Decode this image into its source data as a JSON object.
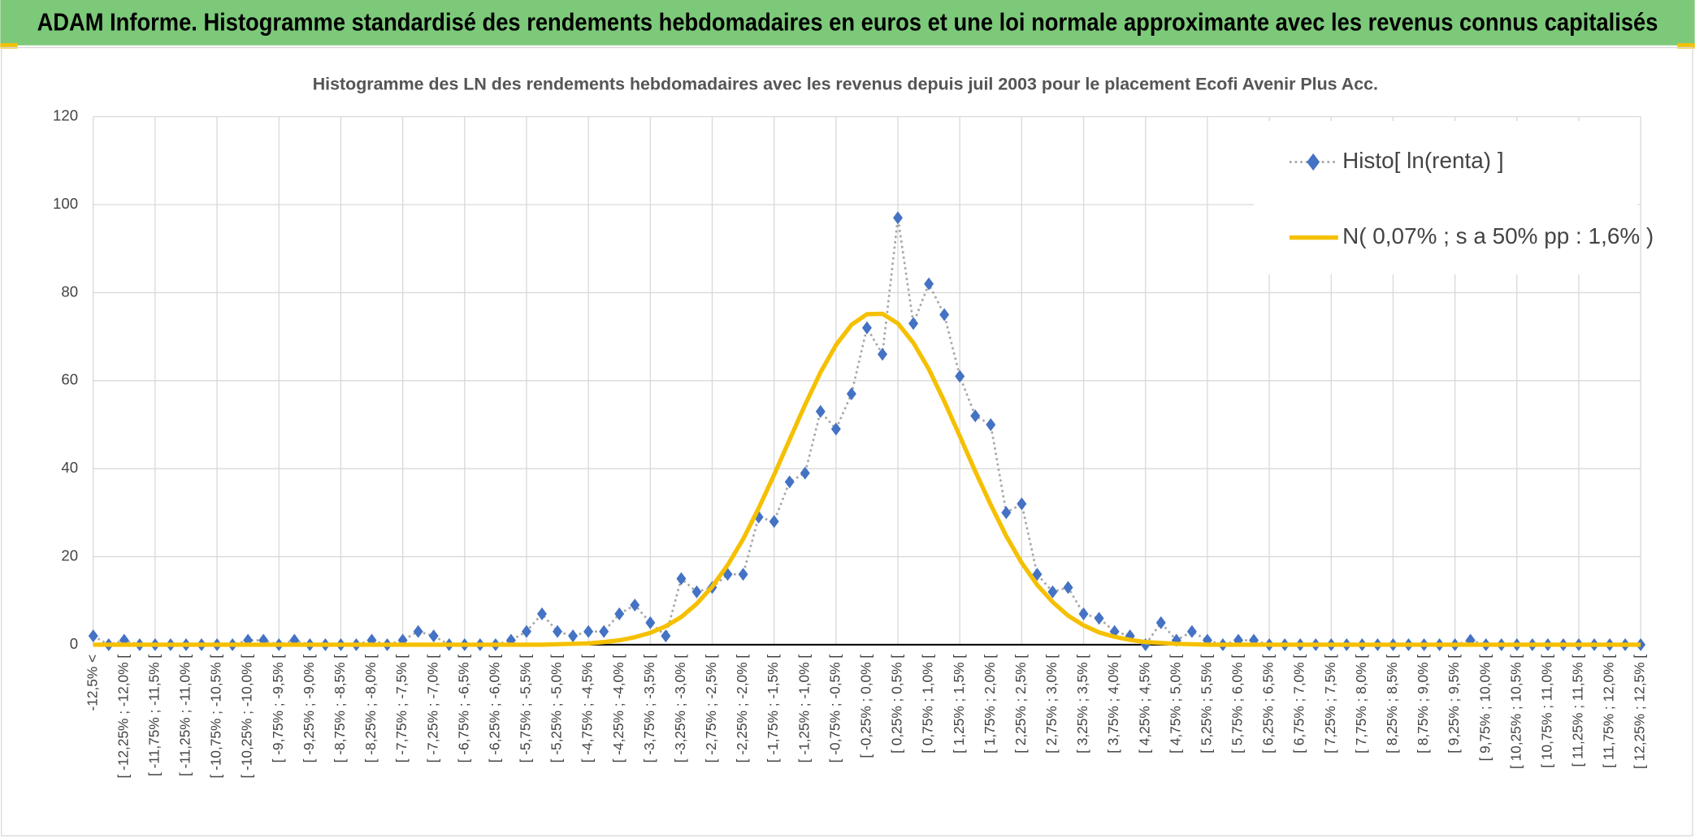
{
  "header": {
    "title": "ADAM Informe. Histogramme standardisé des rendements hebdomadaires en euros et une loi normale approximante avec les revenus connus capitalisés"
  },
  "chart_data": {
    "type": "line",
    "title": "Histogramme des LN des rendements hebdomadaires avec les revenus depuis juil 2003 pour le placement Ecofi Avenir Plus Acc.",
    "categories": [
      "-12,5% <",
      null,
      "[ -12,25% ; -12,0% [",
      null,
      "[ -11,75% ; -11,5% [",
      null,
      "[ -11,25% ; -11,0% [",
      null,
      "[ -10,75% ; -10,5% [",
      null,
      "[ -10,25% ; -10,0% [",
      null,
      "[ -9,75% ; -9,5% [",
      null,
      "[ -9,25% ; -9,0% [",
      null,
      "[ -8,75% ; -8,5% [",
      null,
      "[ -8,25% ; -8,0% [",
      null,
      "[ -7,75% ; -7,5% [",
      null,
      "[ -7,25% ; -7,0% [",
      null,
      "[ -6,75% ; -6,5% [",
      null,
      "[ -6,25% ; -6,0% [",
      null,
      "[ -5,75% ; -5,5% [",
      null,
      "[ -5,25% ; -5,0% [",
      null,
      "[ -4,75% ; -4,5% [",
      null,
      "[ -4,25% ; -4,0% [",
      null,
      "[ -3,75% ; -3,5% [",
      null,
      "[ -3,25% ; -3,0% [",
      null,
      "[ -2,75% ; -2,5% [",
      null,
      "[ -2,25% ; -2,0% [",
      null,
      "[ -1,75% ; -1,5% [",
      null,
      "[ -1,25% ; -1,0% [",
      null,
      "[ -0,75% ; -0,5% [",
      null,
      "[ -0,25% ; 0,0% [",
      null,
      "[ 0,25% ; 0,5% [",
      null,
      "[ 0,75% ; 1,0% [",
      null,
      "[ 1,25% ; 1,5% [",
      null,
      "[ 1,75% ; 2,0% [",
      null,
      "[ 2,25% ; 2,5% [",
      null,
      "[ 2,75% ; 3,0% [",
      null,
      "[ 3,25% ; 3,5% [",
      null,
      "[ 3,75% ; 4,0% [",
      null,
      "[ 4,25% ; 4,5% [",
      null,
      "[ 4,75% ; 5,0% [",
      null,
      "[ 5,25% ; 5,5% [",
      null,
      "[ 5,75% ; 6,0% [",
      null,
      "[ 6,25% ; 6,5% [",
      null,
      "[ 6,75% ; 7,0% [",
      null,
      "[ 7,25% ; 7,5% [",
      null,
      "[ 7,75% ; 8,0% [",
      null,
      "[ 8,25% ; 8,5% [",
      null,
      "[ 8,75% ; 9,0% [",
      null,
      "[ 9,25% ; 9,5% [",
      null,
      "[ 9,75% ; 10,0% [",
      null,
      "[ 10,25% ; 10,5% [",
      null,
      "[ 10,75% ; 11,0% [",
      null,
      "[ 11,25% ; 11,5% [",
      null,
      "[ 11,75% ; 12,0% [",
      null,
      "[ 12,25% ; 12,5% ["
    ],
    "series": [
      {
        "name": "Histo[ ln(renta) ]",
        "color": "#4472c4",
        "values": [
          2,
          0,
          1,
          0,
          0,
          0,
          0,
          0,
          0,
          0,
          1,
          1,
          0,
          1,
          0,
          0,
          0,
          0,
          1,
          0,
          1,
          3,
          2,
          0,
          0,
          0,
          0,
          1,
          3,
          7,
          3,
          2,
          3,
          3,
          7,
          9,
          5,
          2,
          15,
          12,
          13,
          16,
          16,
          29,
          28,
          37,
          39,
          53,
          49,
          57,
          72,
          66,
          97,
          73,
          82,
          75,
          61,
          52,
          50,
          30,
          32,
          16,
          12,
          13,
          7,
          6,
          3,
          2,
          0,
          5,
          1,
          3,
          1,
          0,
          1,
          1,
          0,
          0,
          0,
          0,
          0,
          0,
          0,
          0,
          0,
          0,
          0,
          0,
          0,
          1,
          0,
          0,
          0,
          0,
          0,
          0,
          0,
          0,
          0,
          0,
          0
        ]
      },
      {
        "name": "N( 0,07% ; s a 50% pp : 1,6% )",
        "color": "#f5c000",
        "values": [
          0,
          0,
          0,
          0,
          0,
          0,
          0,
          0,
          0,
          0,
          0,
          0,
          0,
          0,
          0,
          0,
          0,
          0,
          0,
          0,
          0,
          0,
          0,
          0,
          0,
          0,
          0,
          0,
          0,
          0,
          0.1,
          0.2,
          0.3,
          0.6,
          1.0,
          1.7,
          2.7,
          4.2,
          6.3,
          9.3,
          13.2,
          18.1,
          24.0,
          31.0,
          38.6,
          46.6,
          54.5,
          61.9,
          68.1,
          72.7,
          75.1,
          75.2,
          73.0,
          68.6,
          62.6,
          55.3,
          47.4,
          39.4,
          31.8,
          24.7,
          18.6,
          13.6,
          9.7,
          6.6,
          4.4,
          2.8,
          1.8,
          1.1,
          0.6,
          0.4,
          0.2,
          0.1,
          0,
          0,
          0,
          0,
          0,
          0,
          0,
          0,
          0,
          0,
          0,
          0,
          0,
          0,
          0,
          0,
          0,
          0,
          0,
          0,
          0,
          0,
          0,
          0,
          0,
          0,
          0,
          0,
          0
        ]
      }
    ],
    "ylim": [
      0,
      120
    ],
    "yticks": [
      0,
      20,
      40,
      60,
      80,
      100,
      120
    ],
    "grid": true,
    "legend": "top-right"
  }
}
